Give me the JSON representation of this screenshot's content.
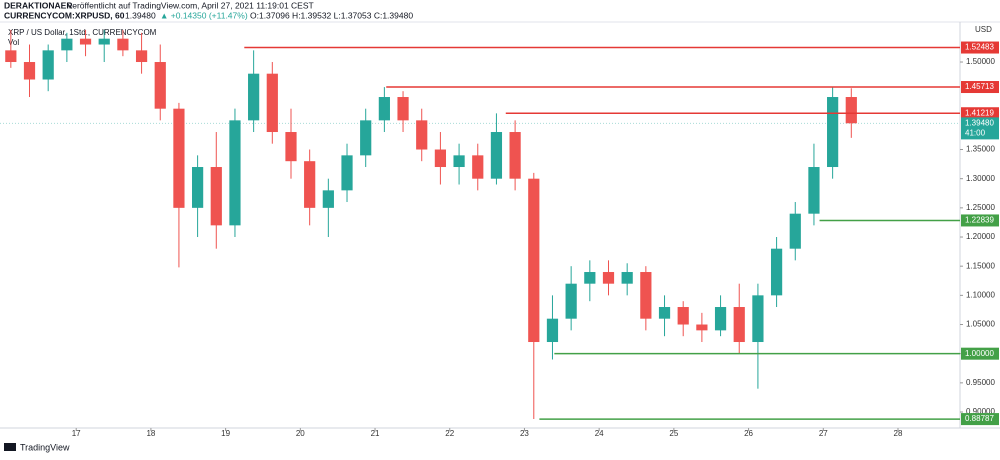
{
  "header": {
    "author": "DERAKTIONAER",
    "published": "veröffentlicht auf TradingView.com, April 27, 2021 11:19:01 CEST",
    "symbol": "CURRENCYCOM:XRPUSD, 60",
    "last": "1.39480",
    "change": "▲ +0.14350 (+11.47%)",
    "ohlc": "O:1.37096 H:1.39532 L:1.37053 C:1.39480"
  },
  "chart_data": {
    "type": "candlestick",
    "legend": "XRP / US Dollar, 1Std., CURRENCYCOM",
    "volume_label": "Vol",
    "currency": "USD",
    "up_color": "#26a69a",
    "down_color": "#ef5350",
    "x": [
      16.125,
      16.375,
      16.625,
      16.875,
      17.125,
      17.375,
      17.625,
      17.875,
      18.125,
      18.375,
      18.625,
      18.875,
      19.125,
      19.375,
      19.625,
      19.875,
      20.125,
      20.375,
      20.625,
      20.875,
      21.125,
      21.375,
      21.625,
      21.875,
      22.125,
      22.375,
      22.625,
      22.875,
      23.125,
      23.375,
      23.625,
      23.875,
      24.125,
      24.375,
      24.625,
      24.875,
      25.125,
      25.375,
      25.625,
      25.875,
      26.125,
      26.375,
      26.625,
      26.875,
      27.125,
      27.375
    ],
    "open": [
      1.52,
      1.5,
      1.47,
      1.52,
      1.54,
      1.53,
      1.54,
      1.52,
      1.5,
      1.42,
      1.25,
      1.32,
      1.22,
      1.4,
      1.48,
      1.38,
      1.33,
      1.25,
      1.28,
      1.34,
      1.4,
      1.44,
      1.4,
      1.35,
      1.32,
      1.34,
      1.3,
      1.38,
      1.3,
      1.02,
      1.06,
      1.12,
      1.14,
      1.12,
      1.14,
      1.06,
      1.08,
      1.05,
      1.04,
      1.08,
      1.02,
      1.1,
      1.18,
      1.24,
      1.32,
      1.44
    ],
    "high": [
      1.555,
      1.53,
      1.53,
      1.55,
      1.555,
      1.555,
      1.555,
      1.55,
      1.53,
      1.43,
      1.34,
      1.38,
      1.42,
      1.52,
      1.5,
      1.42,
      1.35,
      1.3,
      1.36,
      1.42,
      1.457,
      1.45,
      1.42,
      1.38,
      1.36,
      1.36,
      1.412,
      1.4,
      1.31,
      1.1,
      1.15,
      1.16,
      1.16,
      1.155,
      1.15,
      1.1,
      1.09,
      1.07,
      1.1,
      1.12,
      1.12,
      1.2,
      1.26,
      1.36,
      1.457,
      1.455
    ],
    "low": [
      1.49,
      1.44,
      1.45,
      1.5,
      1.51,
      1.5,
      1.51,
      1.48,
      1.4,
      1.148,
      1.2,
      1.18,
      1.2,
      1.38,
      1.36,
      1.3,
      1.22,
      1.2,
      1.26,
      1.32,
      1.38,
      1.38,
      1.33,
      1.29,
      1.29,
      1.28,
      1.29,
      1.28,
      0.888,
      0.99,
      1.04,
      1.09,
      1.1,
      1.1,
      1.04,
      1.03,
      1.03,
      1.02,
      1.03,
      1.0,
      0.94,
      1.08,
      1.16,
      1.22,
      1.3,
      1.37
    ],
    "close": [
      1.5,
      1.47,
      1.52,
      1.54,
      1.53,
      1.54,
      1.52,
      1.5,
      1.42,
      1.25,
      1.32,
      1.22,
      1.4,
      1.48,
      1.38,
      1.33,
      1.25,
      1.28,
      1.34,
      1.4,
      1.44,
      1.4,
      1.35,
      1.32,
      1.34,
      1.3,
      1.38,
      1.3,
      1.02,
      1.06,
      1.12,
      1.14,
      1.12,
      1.14,
      1.06,
      1.08,
      1.05,
      1.04,
      1.08,
      1.02,
      1.1,
      1.18,
      1.24,
      1.32,
      1.44,
      1.395
    ],
    "xlim": [
      15.98,
      28.83
    ],
    "xticks": [
      17,
      18,
      19,
      20,
      21,
      22,
      23,
      24,
      25,
      26,
      27,
      28
    ],
    "ylim": [
      0.8726,
      1.5686
    ],
    "yticks": [
      {
        "value": 0.9,
        "label": "0.90000"
      },
      {
        "value": 0.95,
        "label": "0.95000"
      },
      {
        "value": 1.0,
        "label": "1.00000"
      },
      {
        "value": 1.05,
        "label": "1.05000"
      },
      {
        "value": 1.1,
        "label": "1.10000"
      },
      {
        "value": 1.15,
        "label": "1.15000"
      },
      {
        "value": 1.2,
        "label": "1.20000"
      },
      {
        "value": 1.25,
        "label": "1.25000"
      },
      {
        "value": 1.3,
        "label": "1.30000"
      },
      {
        "value": 1.35,
        "label": "1.35000"
      },
      {
        "value": 1.5,
        "label": "1.50000"
      }
    ],
    "levels": [
      {
        "value": 1.52483,
        "label": "1.52483",
        "start": 19.25,
        "color": "#e53935"
      },
      {
        "value": 1.45713,
        "label": "1.45713",
        "start": 21.15,
        "color": "#e53935"
      },
      {
        "value": 1.41219,
        "label": "1.41219",
        "start": 22.75,
        "color": "#e53935"
      },
      {
        "value": 1.22839,
        "label": "1.22839",
        "start": 26.95,
        "color": "#43a047"
      },
      {
        "value": 1.0,
        "label": "1.00000",
        "start": 23.4,
        "color": "#43a047"
      },
      {
        "value": 0.88787,
        "label": "0.88787",
        "start": 23.2,
        "color": "#43a047"
      }
    ],
    "last_price": {
      "value": 1.3948,
      "label": "1.39480",
      "countdown": "41:00",
      "color": "#26a69a"
    }
  },
  "footer": "TradingView"
}
